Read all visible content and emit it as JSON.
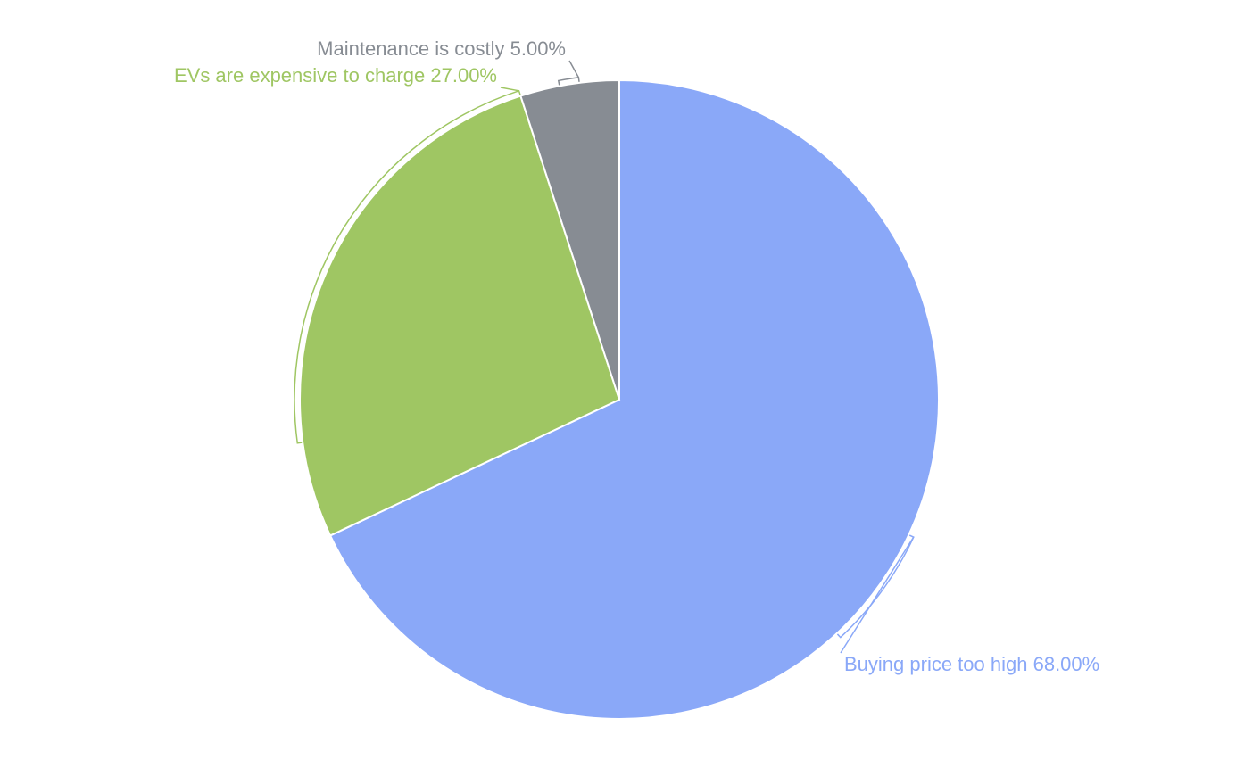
{
  "chart_data": {
    "type": "pie",
    "categories": [
      "Buying price too high",
      "EVs are expensive to charge",
      "Maintenance is costly"
    ],
    "values": [
      68,
      27,
      5
    ],
    "value_labels": [
      "68.00%",
      "27.00%",
      "5.00%"
    ],
    "colors": [
      "#8aa8f8",
      "#9fc663",
      "#878c93"
    ]
  }
}
